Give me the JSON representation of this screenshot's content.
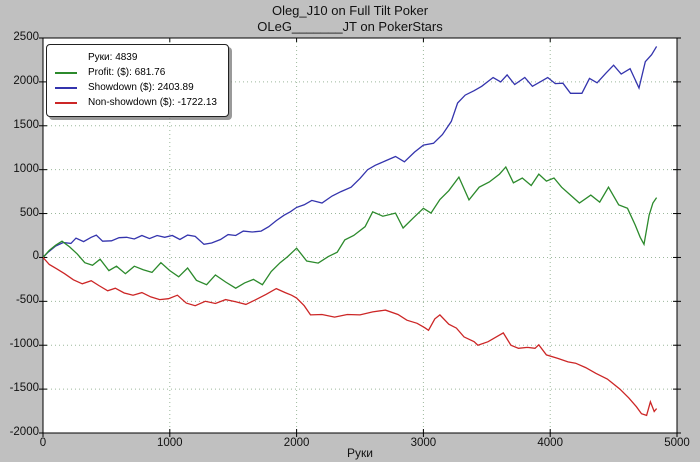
{
  "title": {
    "line1": "Oleg_J10 on Full Tilt Poker",
    "line2": "OLeG_______JT on PokerStars"
  },
  "legend": {
    "hands_label": "Руки: 4839",
    "items": [
      {
        "label": "Profit: ($): 681.76",
        "color": "#2c8a2c"
      },
      {
        "label": "Showdown ($): 2403.89",
        "color": "#3434ad"
      },
      {
        "label": "Non-showdown ($): -1722.13",
        "color": "#cc2626"
      }
    ]
  },
  "axes": {
    "xlabel": "Руки",
    "x_ticks": [
      0,
      1000,
      2000,
      3000,
      4000,
      5000
    ],
    "y_ticks": [
      2500,
      2000,
      1500,
      1000,
      500,
      0,
      -500,
      -1000,
      -1500,
      -2000
    ],
    "xlim": [
      0,
      5000
    ],
    "ylim": [
      -2000,
      2500
    ],
    "grid": "dotted",
    "grid_color": "#9cb89c",
    "plot_bg": "#ffffff",
    "figure_bg": "#c0c0c0"
  },
  "chart_data": {
    "type": "line",
    "title": "Oleg_J10 on Full Tilt Poker / OLeG_______JT on PokerStars",
    "xlabel": "Руки",
    "ylabel": "$",
    "xlim": [
      0,
      5000
    ],
    "ylim": [
      -2000,
      2500
    ],
    "legend_position": "top-left",
    "stats": {
      "hands": 4839,
      "profit": 681.76,
      "showdown": 2403.89,
      "non_showdown": -1722.13
    },
    "series": [
      {
        "name": "Showdown ($)",
        "color": "#3434ad",
        "points": [
          [
            0,
            0
          ],
          [
            40,
            60
          ],
          [
            100,
            130
          ],
          [
            160,
            170
          ],
          [
            220,
            160
          ],
          [
            260,
            220
          ],
          [
            320,
            180
          ],
          [
            380,
            230
          ],
          [
            420,
            255
          ],
          [
            470,
            185
          ],
          [
            540,
            190
          ],
          [
            600,
            225
          ],
          [
            660,
            230
          ],
          [
            720,
            210
          ],
          [
            780,
            250
          ],
          [
            840,
            215
          ],
          [
            900,
            250
          ],
          [
            960,
            230
          ],
          [
            1020,
            250
          ],
          [
            1080,
            205
          ],
          [
            1140,
            255
          ],
          [
            1200,
            240
          ],
          [
            1270,
            150
          ],
          [
            1330,
            165
          ],
          [
            1400,
            205
          ],
          [
            1460,
            260
          ],
          [
            1520,
            250
          ],
          [
            1580,
            300
          ],
          [
            1650,
            290
          ],
          [
            1720,
            300
          ],
          [
            1780,
            350
          ],
          [
            1840,
            420
          ],
          [
            1900,
            480
          ],
          [
            1950,
            520
          ],
          [
            2000,
            570
          ],
          [
            2060,
            600
          ],
          [
            2120,
            650
          ],
          [
            2200,
            620
          ],
          [
            2280,
            700
          ],
          [
            2350,
            750
          ],
          [
            2430,
            800
          ],
          [
            2500,
            900
          ],
          [
            2560,
            1000
          ],
          [
            2620,
            1050
          ],
          [
            2700,
            1100
          ],
          [
            2780,
            1150
          ],
          [
            2850,
            1090
          ],
          [
            2930,
            1200
          ],
          [
            3000,
            1280
          ],
          [
            3080,
            1300
          ],
          [
            3150,
            1400
          ],
          [
            3220,
            1550
          ],
          [
            3270,
            1760
          ],
          [
            3330,
            1850
          ],
          [
            3400,
            1900
          ],
          [
            3460,
            1950
          ],
          [
            3550,
            2050
          ],
          [
            3610,
            2000
          ],
          [
            3660,
            2080
          ],
          [
            3720,
            1970
          ],
          [
            3800,
            2050
          ],
          [
            3860,
            1950
          ],
          [
            3920,
            2000
          ],
          [
            3980,
            2050
          ],
          [
            4040,
            1980
          ],
          [
            4100,
            1985
          ],
          [
            4160,
            1870
          ],
          [
            4250,
            1870
          ],
          [
            4310,
            2040
          ],
          [
            4370,
            1990
          ],
          [
            4440,
            2100
          ],
          [
            4500,
            2190
          ],
          [
            4560,
            2090
          ],
          [
            4630,
            2150
          ],
          [
            4700,
            1930
          ],
          [
            4750,
            2230
          ],
          [
            4800,
            2310
          ],
          [
            4839,
            2404
          ]
        ]
      },
      {
        "name": "Profit ($)",
        "color": "#2c8a2c",
        "points": [
          [
            0,
            0
          ],
          [
            50,
            80
          ],
          [
            100,
            140
          ],
          [
            150,
            185
          ],
          [
            210,
            120
          ],
          [
            270,
            40
          ],
          [
            330,
            -60
          ],
          [
            390,
            -90
          ],
          [
            450,
            -20
          ],
          [
            520,
            -150
          ],
          [
            580,
            -100
          ],
          [
            650,
            -185
          ],
          [
            720,
            -100
          ],
          [
            790,
            -140
          ],
          [
            860,
            -170
          ],
          [
            930,
            -60
          ],
          [
            1000,
            -150
          ],
          [
            1070,
            -220
          ],
          [
            1140,
            -120
          ],
          [
            1210,
            -260
          ],
          [
            1290,
            -310
          ],
          [
            1360,
            -200
          ],
          [
            1440,
            -280
          ],
          [
            1520,
            -350
          ],
          [
            1590,
            -290
          ],
          [
            1660,
            -250
          ],
          [
            1730,
            -310
          ],
          [
            1800,
            -160
          ],
          [
            1870,
            -60
          ],
          [
            1930,
            10
          ],
          [
            2000,
            105
          ],
          [
            2080,
            -40
          ],
          [
            2170,
            -65
          ],
          [
            2250,
            10
          ],
          [
            2320,
            60
          ],
          [
            2380,
            200
          ],
          [
            2450,
            250
          ],
          [
            2540,
            350
          ],
          [
            2600,
            520
          ],
          [
            2680,
            470
          ],
          [
            2780,
            505
          ],
          [
            2840,
            335
          ],
          [
            2920,
            450
          ],
          [
            3000,
            560
          ],
          [
            3060,
            505
          ],
          [
            3130,
            660
          ],
          [
            3200,
            760
          ],
          [
            3280,
            915
          ],
          [
            3360,
            655
          ],
          [
            3440,
            800
          ],
          [
            3520,
            860
          ],
          [
            3600,
            950
          ],
          [
            3650,
            1030
          ],
          [
            3710,
            850
          ],
          [
            3780,
            905
          ],
          [
            3850,
            820
          ],
          [
            3910,
            950
          ],
          [
            3970,
            870
          ],
          [
            4030,
            905
          ],
          [
            4090,
            800
          ],
          [
            4160,
            710
          ],
          [
            4230,
            620
          ],
          [
            4320,
            710
          ],
          [
            4390,
            630
          ],
          [
            4460,
            800
          ],
          [
            4540,
            600
          ],
          [
            4610,
            560
          ],
          [
            4670,
            370
          ],
          [
            4710,
            230
          ],
          [
            4740,
            150
          ],
          [
            4780,
            480
          ],
          [
            4810,
            620
          ],
          [
            4839,
            682
          ]
        ]
      },
      {
        "name": "Non-showdown ($)",
        "color": "#cc2626",
        "points": [
          [
            0,
            0
          ],
          [
            50,
            -80
          ],
          [
            110,
            -130
          ],
          [
            170,
            -185
          ],
          [
            240,
            -255
          ],
          [
            310,
            -300
          ],
          [
            380,
            -265
          ],
          [
            440,
            -320
          ],
          [
            510,
            -380
          ],
          [
            570,
            -350
          ],
          [
            640,
            -405
          ],
          [
            710,
            -430
          ],
          [
            780,
            -400
          ],
          [
            850,
            -450
          ],
          [
            920,
            -480
          ],
          [
            990,
            -470
          ],
          [
            1060,
            -430
          ],
          [
            1130,
            -520
          ],
          [
            1200,
            -550
          ],
          [
            1280,
            -500
          ],
          [
            1360,
            -525
          ],
          [
            1440,
            -480
          ],
          [
            1520,
            -505
          ],
          [
            1600,
            -535
          ],
          [
            1680,
            -480
          ],
          [
            1760,
            -420
          ],
          [
            1840,
            -355
          ],
          [
            1910,
            -400
          ],
          [
            1960,
            -430
          ],
          [
            2000,
            -462
          ],
          [
            2060,
            -550
          ],
          [
            2110,
            -655
          ],
          [
            2200,
            -650
          ],
          [
            2300,
            -680
          ],
          [
            2400,
            -650
          ],
          [
            2500,
            -655
          ],
          [
            2600,
            -620
          ],
          [
            2700,
            -600
          ],
          [
            2800,
            -650
          ],
          [
            2870,
            -715
          ],
          [
            2950,
            -750
          ],
          [
            3010,
            -800
          ],
          [
            3040,
            -830
          ],
          [
            3090,
            -700
          ],
          [
            3130,
            -655
          ],
          [
            3200,
            -760
          ],
          [
            3260,
            -805
          ],
          [
            3320,
            -905
          ],
          [
            3400,
            -960
          ],
          [
            3430,
            -1000
          ],
          [
            3510,
            -960
          ],
          [
            3600,
            -885
          ],
          [
            3630,
            -860
          ],
          [
            3690,
            -1000
          ],
          [
            3750,
            -1035
          ],
          [
            3820,
            -1025
          ],
          [
            3880,
            -1035
          ],
          [
            3910,
            -995
          ],
          [
            3970,
            -1110
          ],
          [
            4060,
            -1150
          ],
          [
            4140,
            -1190
          ],
          [
            4200,
            -1205
          ],
          [
            4280,
            -1255
          ],
          [
            4360,
            -1320
          ],
          [
            4450,
            -1385
          ],
          [
            4550,
            -1500
          ],
          [
            4620,
            -1600
          ],
          [
            4680,
            -1700
          ],
          [
            4720,
            -1780
          ],
          [
            4760,
            -1800
          ],
          [
            4790,
            -1645
          ],
          [
            4820,
            -1755
          ],
          [
            4839,
            -1722
          ]
        ]
      }
    ]
  }
}
